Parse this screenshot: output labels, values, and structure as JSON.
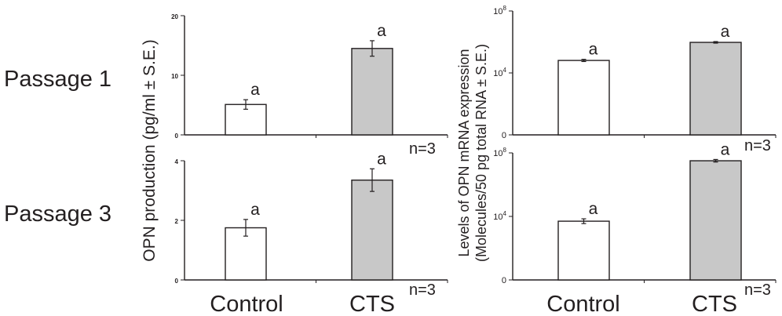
{
  "row_labels": [
    "Passage 1",
    "Passage 3"
  ],
  "left_ylabel": "OPN production (pg/ml ± S.E.)",
  "right_ylabel_line1": "Levels of  OPN mRNA expression",
  "right_ylabel_line2": "(Molecules/50 pg total RNA ± S.E.)",
  "category_labels": [
    "Control",
    "CTS"
  ],
  "colors": {
    "control": "#ffffff",
    "cts": "#c8c8c8",
    "stroke": "#231f20"
  },
  "chart_data": [
    {
      "type": "bar",
      "panel": "passage-1-production",
      "categories": [
        "Control",
        "CTS"
      ],
      "values": [
        5.1,
        14.5
      ],
      "errors": [
        0.8,
        1.3
      ],
      "ylim": [
        0,
        20
      ],
      "yticks": [
        "0",
        "10",
        "20"
      ],
      "yscale": "linear",
      "significance": [
        "a",
        "a"
      ],
      "n_label": "n=3"
    },
    {
      "type": "bar",
      "panel": "passage-1-mrna",
      "categories": [
        "Control",
        "CTS"
      ],
      "values": [
        64000,
        940000
      ],
      "errors_log": [
        0.07,
        0.05
      ],
      "ylim": [
        1,
        100000000
      ],
      "yticks": [
        "0",
        "10^4",
        "10^8"
      ],
      "yscale": "log",
      "significance": [
        "a",
        "a"
      ],
      "n_label": "n=3"
    },
    {
      "type": "bar",
      "panel": "passage-3-production",
      "categories": [
        "Control",
        "CTS"
      ],
      "values": [
        1.75,
        3.35
      ],
      "errors": [
        0.28,
        0.38
      ],
      "ylim": [
        0,
        4
      ],
      "yticks": [
        "0",
        "2",
        "4"
      ],
      "yscale": "linear",
      "significance": [
        "a",
        "a"
      ],
      "n_label": "n=3"
    },
    {
      "type": "bar",
      "panel": "passage-3-mrna",
      "categories": [
        "Control",
        "CTS"
      ],
      "values": [
        5000,
        32000000
      ],
      "errors_log": [
        0.15,
        0.08
      ],
      "ylim": [
        1,
        100000000
      ],
      "yticks": [
        "0",
        "10^4",
        "10^8"
      ],
      "yscale": "log",
      "significance": [
        "a",
        "a"
      ],
      "n_label": "n=3"
    }
  ]
}
